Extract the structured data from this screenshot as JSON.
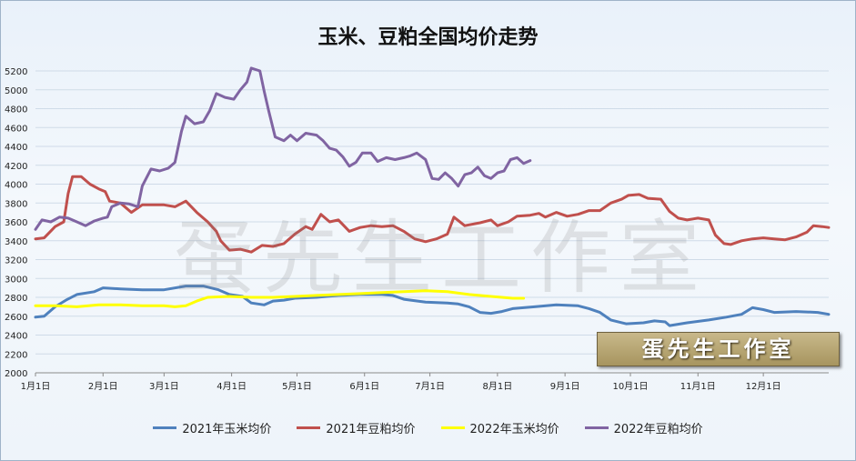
{
  "chart_data": {
    "type": "line",
    "title": "玉米、豆粕全国均价走势",
    "ylim": [
      2000,
      5200
    ],
    "y_ticks": [
      "5200",
      "5000",
      "4800",
      "4600",
      "4400",
      "4200",
      "4000",
      "3800",
      "3600",
      "3400",
      "3200",
      "3000",
      "2800",
      "2600",
      "2400",
      "2200",
      "2000"
    ],
    "x_ticks": [
      "1月1日",
      "2月1日",
      "3月1日",
      "4月1日",
      "5月1日",
      "6月1日",
      "7月1日",
      "8月1日",
      "9月1日",
      "10月1日",
      "11月1日",
      "12月1日"
    ],
    "x_unit": "day of year",
    "grid": true,
    "legend_position": "bottom",
    "series": [
      {
        "name": "2021年玉米均价",
        "color": "#4f81bd",
        "points": [
          [
            1,
            2590
          ],
          [
            5,
            2600
          ],
          [
            10,
            2700
          ],
          [
            15,
            2770
          ],
          [
            20,
            2830
          ],
          [
            28,
            2860
          ],
          [
            32,
            2900
          ],
          [
            40,
            2890
          ],
          [
            50,
            2880
          ],
          [
            60,
            2880
          ],
          [
            70,
            2920
          ],
          [
            78,
            2920
          ],
          [
            85,
            2880
          ],
          [
            90,
            2830
          ],
          [
            96,
            2810
          ],
          [
            100,
            2740
          ],
          [
            106,
            2720
          ],
          [
            110,
            2760
          ],
          [
            115,
            2770
          ],
          [
            120,
            2790
          ],
          [
            130,
            2800
          ],
          [
            140,
            2820
          ],
          [
            150,
            2830
          ],
          [
            160,
            2830
          ],
          [
            165,
            2820
          ],
          [
            170,
            2780
          ],
          [
            180,
            2750
          ],
          [
            190,
            2740
          ],
          [
            195,
            2730
          ],
          [
            200,
            2700
          ],
          [
            205,
            2640
          ],
          [
            210,
            2630
          ],
          [
            215,
            2650
          ],
          [
            220,
            2680
          ],
          [
            230,
            2700
          ],
          [
            240,
            2720
          ],
          [
            250,
            2710
          ],
          [
            255,
            2680
          ],
          [
            260,
            2640
          ],
          [
            265,
            2560
          ],
          [
            272,
            2520
          ],
          [
            280,
            2530
          ],
          [
            285,
            2550
          ],
          [
            290,
            2540
          ],
          [
            292,
            2500
          ],
          [
            300,
            2530
          ],
          [
            310,
            2560
          ],
          [
            318,
            2590
          ],
          [
            325,
            2620
          ],
          [
            330,
            2690
          ],
          [
            335,
            2670
          ],
          [
            340,
            2640
          ],
          [
            350,
            2650
          ],
          [
            360,
            2640
          ],
          [
            365,
            2620
          ]
        ]
      },
      {
        "name": "2021年豆粕均价",
        "color": "#c0504d",
        "points": [
          [
            1,
            3420
          ],
          [
            5,
            3430
          ],
          [
            10,
            3550
          ],
          [
            14,
            3600
          ],
          [
            16,
            3900
          ],
          [
            18,
            4080
          ],
          [
            22,
            4080
          ],
          [
            26,
            4000
          ],
          [
            30,
            3950
          ],
          [
            33,
            3920
          ],
          [
            35,
            3820
          ],
          [
            40,
            3800
          ],
          [
            45,
            3700
          ],
          [
            50,
            3780
          ],
          [
            60,
            3780
          ],
          [
            65,
            3760
          ],
          [
            70,
            3820
          ],
          [
            75,
            3700
          ],
          [
            80,
            3600
          ],
          [
            84,
            3500
          ],
          [
            86,
            3400
          ],
          [
            90,
            3300
          ],
          [
            95,
            3310
          ],
          [
            100,
            3280
          ],
          [
            105,
            3350
          ],
          [
            110,
            3340
          ],
          [
            115,
            3370
          ],
          [
            120,
            3470
          ],
          [
            125,
            3550
          ],
          [
            128,
            3520
          ],
          [
            132,
            3680
          ],
          [
            136,
            3600
          ],
          [
            140,
            3620
          ],
          [
            145,
            3500
          ],
          [
            150,
            3540
          ],
          [
            155,
            3560
          ],
          [
            160,
            3550
          ],
          [
            165,
            3560
          ],
          [
            170,
            3500
          ],
          [
            175,
            3420
          ],
          [
            180,
            3390
          ],
          [
            185,
            3420
          ],
          [
            190,
            3470
          ],
          [
            193,
            3650
          ],
          [
            198,
            3560
          ],
          [
            205,
            3590
          ],
          [
            210,
            3620
          ],
          [
            213,
            3560
          ],
          [
            218,
            3600
          ],
          [
            222,
            3660
          ],
          [
            228,
            3670
          ],
          [
            232,
            3690
          ],
          [
            235,
            3650
          ],
          [
            240,
            3700
          ],
          [
            245,
            3660
          ],
          [
            250,
            3680
          ],
          [
            255,
            3720
          ],
          [
            260,
            3720
          ],
          [
            265,
            3800
          ],
          [
            270,
            3840
          ],
          [
            273,
            3880
          ],
          [
            278,
            3890
          ],
          [
            282,
            3850
          ],
          [
            288,
            3840
          ],
          [
            292,
            3710
          ],
          [
            296,
            3640
          ],
          [
            300,
            3620
          ],
          [
            305,
            3640
          ],
          [
            310,
            3620
          ],
          [
            313,
            3460
          ],
          [
            317,
            3370
          ],
          [
            320,
            3360
          ],
          [
            325,
            3400
          ],
          [
            330,
            3420
          ],
          [
            335,
            3430
          ],
          [
            340,
            3420
          ],
          [
            345,
            3410
          ],
          [
            350,
            3440
          ],
          [
            355,
            3490
          ],
          [
            358,
            3560
          ],
          [
            362,
            3550
          ],
          [
            365,
            3540
          ]
        ]
      },
      {
        "name": "2022年玉米均价",
        "color": "#ffff00",
        "points": [
          [
            1,
            2710
          ],
          [
            10,
            2710
          ],
          [
            20,
            2700
          ],
          [
            30,
            2720
          ],
          [
            40,
            2720
          ],
          [
            50,
            2710
          ],
          [
            60,
            2710
          ],
          [
            65,
            2700
          ],
          [
            70,
            2710
          ],
          [
            75,
            2760
          ],
          [
            80,
            2800
          ],
          [
            90,
            2810
          ],
          [
            100,
            2800
          ],
          [
            110,
            2800
          ],
          [
            120,
            2810
          ],
          [
            130,
            2820
          ],
          [
            140,
            2830
          ],
          [
            150,
            2840
          ],
          [
            160,
            2850
          ],
          [
            170,
            2860
          ],
          [
            180,
            2870
          ],
          [
            190,
            2860
          ],
          [
            200,
            2830
          ],
          [
            210,
            2810
          ],
          [
            220,
            2790
          ],
          [
            225,
            2790
          ]
        ]
      },
      {
        "name": "2022年豆粕均价",
        "color": "#8064a2",
        "points": [
          [
            1,
            3520
          ],
          [
            4,
            3620
          ],
          [
            8,
            3600
          ],
          [
            12,
            3650
          ],
          [
            16,
            3640
          ],
          [
            20,
            3600
          ],
          [
            24,
            3560
          ],
          [
            28,
            3610
          ],
          [
            32,
            3640
          ],
          [
            34,
            3650
          ],
          [
            36,
            3760
          ],
          [
            40,
            3800
          ],
          [
            44,
            3790
          ],
          [
            48,
            3760
          ],
          [
            50,
            3980
          ],
          [
            54,
            4160
          ],
          [
            58,
            4140
          ],
          [
            62,
            4170
          ],
          [
            65,
            4230
          ],
          [
            68,
            4560
          ],
          [
            70,
            4720
          ],
          [
            74,
            4640
          ],
          [
            78,
            4660
          ],
          [
            81,
            4780
          ],
          [
            84,
            4960
          ],
          [
            88,
            4920
          ],
          [
            92,
            4900
          ],
          [
            95,
            5000
          ],
          [
            98,
            5080
          ],
          [
            100,
            5230
          ],
          [
            104,
            5200
          ],
          [
            106,
            4980
          ],
          [
            108,
            4780
          ],
          [
            111,
            4500
          ],
          [
            115,
            4460
          ],
          [
            118,
            4520
          ],
          [
            121,
            4460
          ],
          [
            125,
            4540
          ],
          [
            130,
            4520
          ],
          [
            133,
            4460
          ],
          [
            136,
            4380
          ],
          [
            139,
            4360
          ],
          [
            142,
            4290
          ],
          [
            145,
            4190
          ],
          [
            148,
            4230
          ],
          [
            151,
            4330
          ],
          [
            155,
            4330
          ],
          [
            158,
            4240
          ],
          [
            162,
            4280
          ],
          [
            166,
            4260
          ],
          [
            170,
            4280
          ],
          [
            173,
            4300
          ],
          [
            176,
            4330
          ],
          [
            180,
            4260
          ],
          [
            183,
            4060
          ],
          [
            186,
            4050
          ],
          [
            189,
            4120
          ],
          [
            192,
            4060
          ],
          [
            195,
            3980
          ],
          [
            198,
            4100
          ],
          [
            201,
            4120
          ],
          [
            204,
            4180
          ],
          [
            207,
            4090
          ],
          [
            210,
            4060
          ],
          [
            213,
            4120
          ],
          [
            216,
            4140
          ],
          [
            219,
            4260
          ],
          [
            222,
            4280
          ],
          [
            225,
            4220
          ],
          [
            228,
            4250
          ]
        ]
      }
    ]
  },
  "watermark": "蛋先生工作室",
  "stamp_text": "蛋先生工作室"
}
